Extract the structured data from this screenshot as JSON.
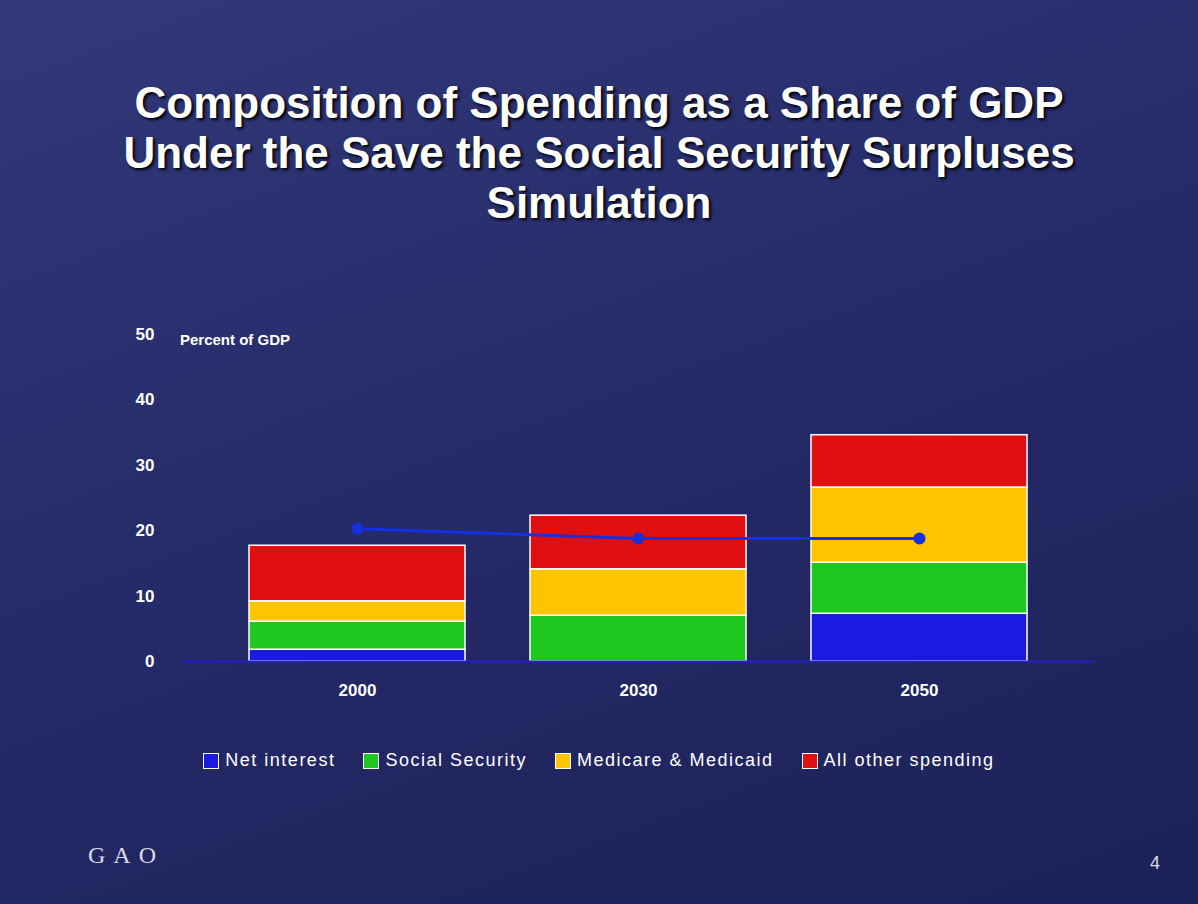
{
  "chart_data": {
    "type": "bar",
    "title": "Composition of Spending as a Share of GDP Under the Save the Social Security Surpluses Simulation",
    "ylabel": "Percent of GDP",
    "categories": [
      "2000",
      "2030",
      "2050"
    ],
    "stacked": true,
    "series": [
      {
        "name": "Net interest",
        "color": "#1a1ae0",
        "values": [
          1.8,
          0,
          7.3
        ]
      },
      {
        "name": "Social Security",
        "color": "#1ec81e",
        "values": [
          4.3,
          7.0,
          7.8
        ]
      },
      {
        "name": "Medicare & Medicaid",
        "color": "#ffc400",
        "values": [
          3.1,
          7.1,
          11.5
        ]
      },
      {
        "name": "All other spending",
        "color": "#e01010",
        "values": [
          8.5,
          8.2,
          8.0
        ]
      },
      {
        "type": "line",
        "color": "#1530e0",
        "marker": "circle",
        "values": [
          20.3,
          18.8,
          18.8
        ]
      }
    ],
    "ylim": [
      0,
      50
    ],
    "yticks": [
      0,
      10,
      20,
      30,
      40,
      50
    ],
    "grid": false,
    "legend": "bottom",
    "source": "GAO",
    "page_number": "4"
  }
}
